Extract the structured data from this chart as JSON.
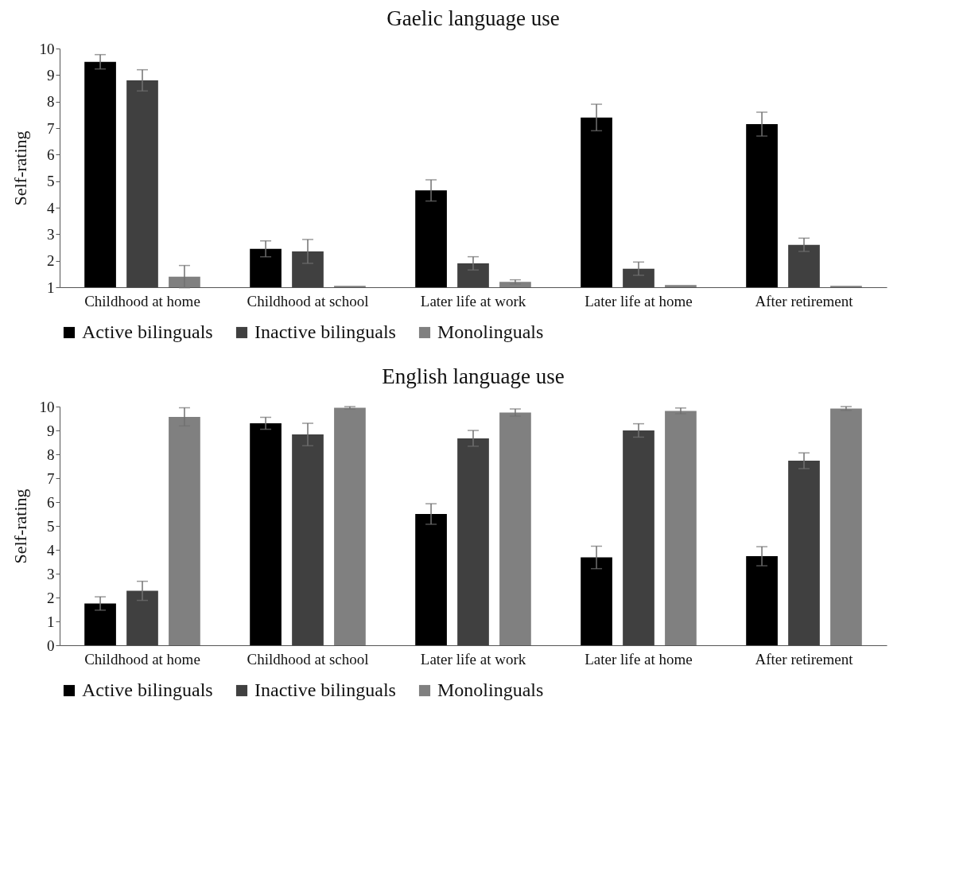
{
  "chart_data": [
    {
      "type": "bar",
      "title": "Gaelic language use",
      "ylabel": "Self-rating",
      "categories": [
        "Childhood at home",
        "Childhood at school",
        "Later life at work",
        "Later life at home",
        "After retirement"
      ],
      "ylim": [
        1,
        10
      ],
      "yticks": [
        1,
        2,
        3,
        4,
        5,
        6,
        7,
        8,
        9,
        10
      ],
      "grid": false,
      "legend": "bottom",
      "series": [
        {
          "name": "Active bilinguals",
          "color": "#000000",
          "values": [
            9.5,
            2.45,
            4.65,
            7.4,
            7.15
          ],
          "errors": [
            0.27,
            0.3,
            0.4,
            0.5,
            0.45
          ]
        },
        {
          "name": "Inactive bilinguals",
          "color": "#404040",
          "values": [
            8.8,
            2.35,
            1.9,
            1.7,
            2.6
          ],
          "errors": [
            0.4,
            0.45,
            0.25,
            0.25,
            0.25
          ]
        },
        {
          "name": "Monolinguals",
          "color": "#808080",
          "values": [
            1.4,
            1.05,
            1.2,
            1.08,
            1.05
          ],
          "errors": [
            0.42,
            null,
            0.08,
            null,
            null
          ]
        }
      ]
    },
    {
      "type": "bar",
      "title": "English language use",
      "ylabel": "Self-rating",
      "categories": [
        "Childhood at home",
        "Childhood at school",
        "Later life at work",
        "Later life at home",
        "After retirement"
      ],
      "ylim": [
        0,
        10
      ],
      "yticks": [
        0,
        1,
        2,
        3,
        4,
        5,
        6,
        7,
        8,
        9,
        10
      ],
      "grid": false,
      "legend": "bottom",
      "series": [
        {
          "name": "Active bilinguals",
          "color": "#000000",
          "values": [
            1.75,
            9.3,
            5.5,
            3.68,
            3.73
          ],
          "errors": [
            0.28,
            0.25,
            0.43,
            0.47,
            0.4
          ]
        },
        {
          "name": "Inactive bilinguals",
          "color": "#404040",
          "values": [
            2.28,
            8.83,
            8.67,
            9.0,
            7.73
          ],
          "errors": [
            0.4,
            0.47,
            0.33,
            0.28,
            0.33
          ]
        },
        {
          "name": "Monolinguals",
          "color": "#808080",
          "values": [
            9.57,
            9.95,
            9.75,
            9.82,
            9.92
          ],
          "errors": [
            0.38,
            0.05,
            0.15,
            0.12,
            0.08
          ]
        }
      ]
    }
  ]
}
